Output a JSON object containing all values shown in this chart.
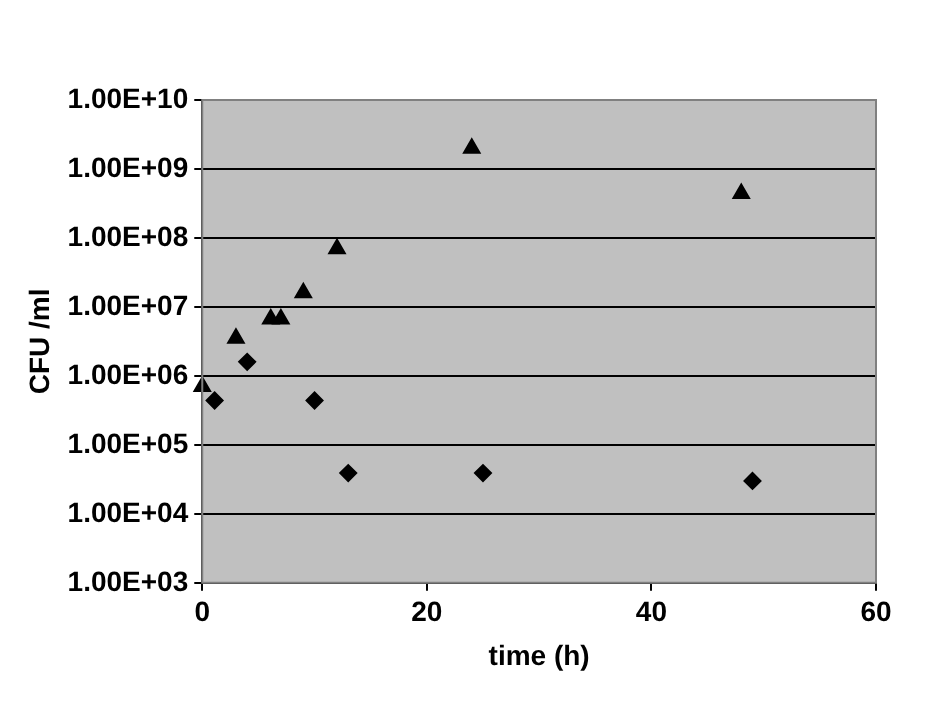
{
  "chart_data": {
    "type": "scatter",
    "xlabel": "time (h)",
    "ylabel": "CFU /ml",
    "log": "y",
    "grid": "y",
    "xlim": [
      0,
      60
    ],
    "xticks": [
      0,
      20,
      40,
      60
    ],
    "ylim": [
      1000,
      10000000000
    ],
    "yticks": [
      {
        "value": 1000,
        "label": "1.00E+03"
      },
      {
        "value": 10000,
        "label": "1.00E+04"
      },
      {
        "value": 100000,
        "label": "1.00E+05"
      },
      {
        "value": 1000000,
        "label": "1.00E+06"
      },
      {
        "value": 10000000,
        "label": "1.00E+07"
      },
      {
        "value": 100000000,
        "label": "1.00E+08"
      },
      {
        "value": 1000000000,
        "label": "1.00E+09"
      },
      {
        "value": 10000000000,
        "label": "1.00E+10"
      }
    ],
    "series": [
      {
        "color": "#000000",
        "marker": "triangle",
        "x": [
          0,
          3,
          6.1,
          7,
          9,
          12,
          24,
          48
        ],
        "values": [
          700000,
          3500000,
          6700000,
          6700000,
          16000000,
          70000000,
          2000000000,
          440000000
        ]
      },
      {
        "color": "#000000",
        "marker": "diamond",
        "x": [
          1.1,
          4,
          10,
          13,
          25,
          49
        ],
        "values": [
          440000,
          1600000,
          440000,
          39000,
          39000,
          30000
        ]
      }
    ]
  }
}
